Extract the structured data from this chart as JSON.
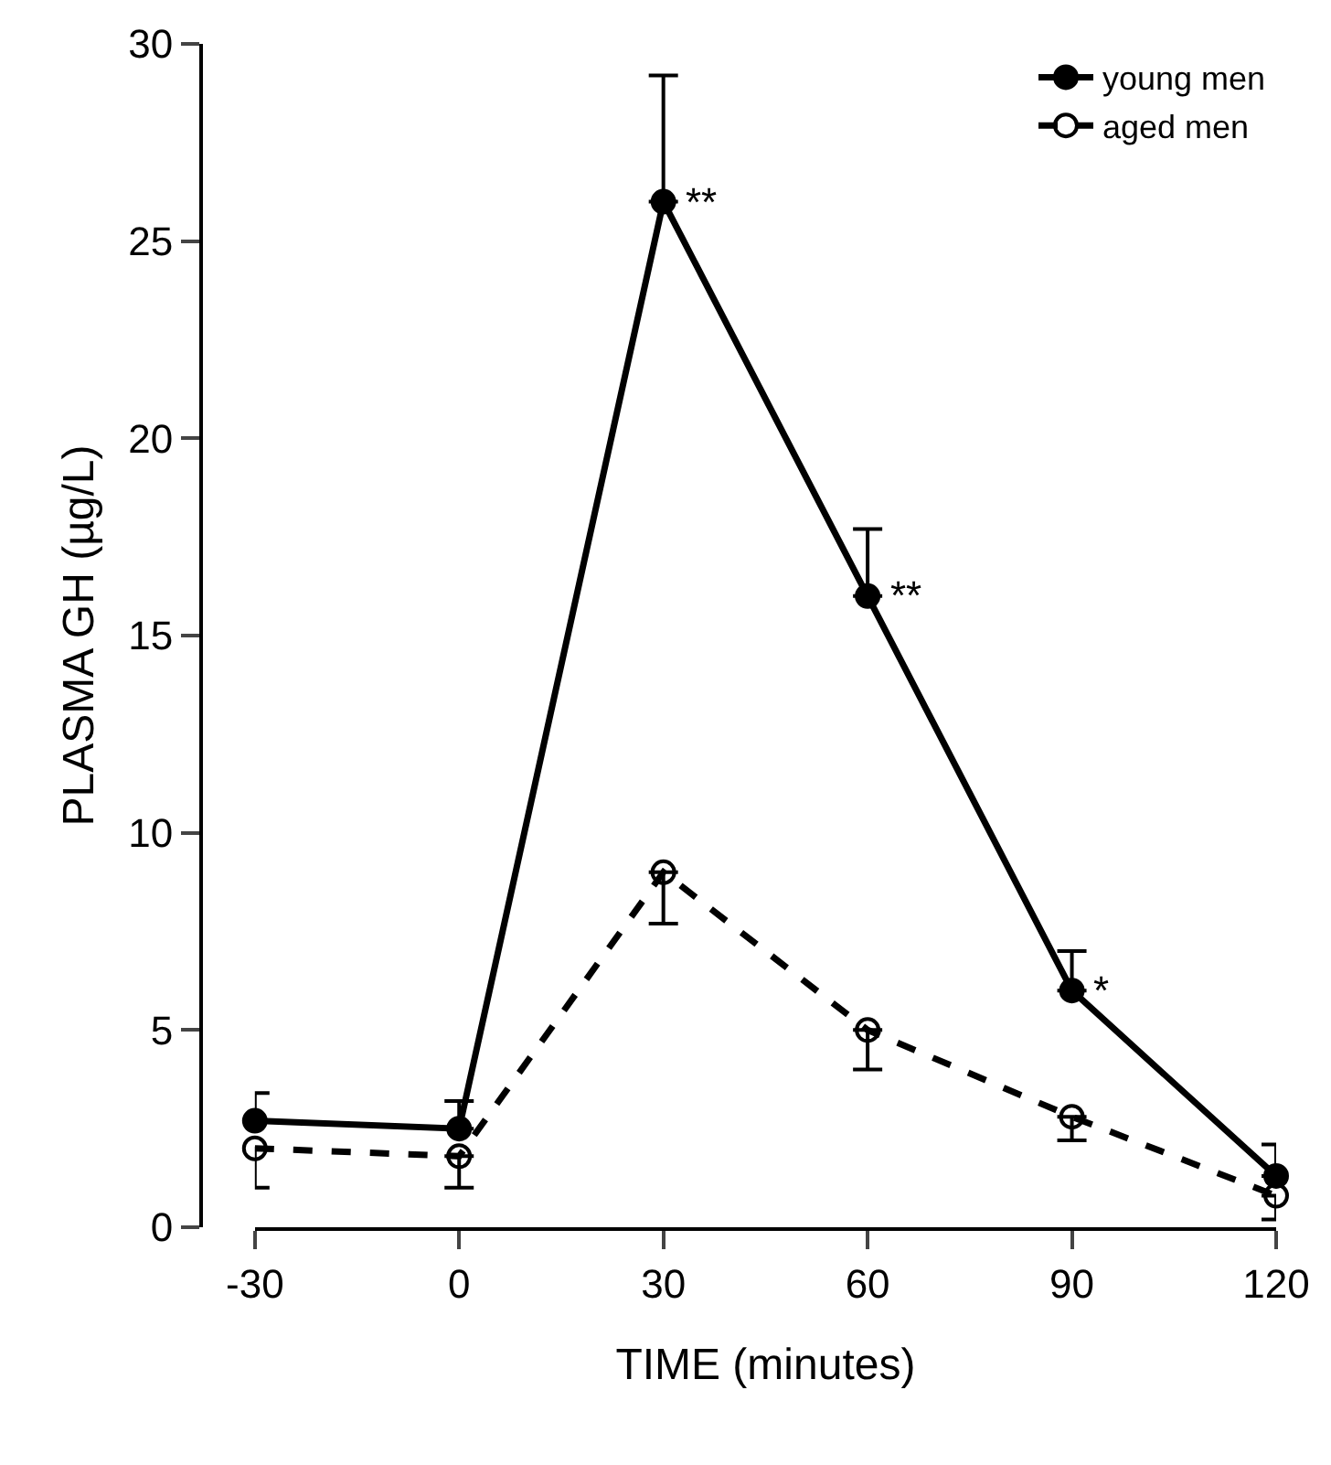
{
  "chart_data": {
    "type": "line",
    "xlabel": "TIME (minutes)",
    "ylabel": "PLASMA GH (µg/L)",
    "x": [
      -30,
      0,
      30,
      60,
      90,
      120
    ],
    "xlim": [
      -30,
      120
    ],
    "xticks": [
      -30,
      0,
      30,
      60,
      90,
      120
    ],
    "ylim": [
      0,
      30
    ],
    "yticks": [
      0,
      5,
      10,
      15,
      20,
      25,
      30
    ],
    "grid": false,
    "legend": "top right",
    "marker": "circle",
    "series": [
      {
        "name": "young men",
        "color": "#000000",
        "line_style": "solid",
        "values": [
          2.7,
          2.5,
          26,
          16,
          6,
          1.3
        ],
        "errors": [
          [
            2.7,
            3.4
          ],
          [
            2.5,
            3.2
          ],
          [
            26,
            29.2
          ],
          [
            16,
            17.7
          ],
          [
            6,
            7
          ],
          [
            1.3,
            2.1
          ]
        ]
      },
      {
        "name": "aged men",
        "color": "#000000",
        "line_style": "dashed",
        "values": [
          2,
          1.8,
          9,
          5,
          2.8,
          0.8
        ],
        "errors": [
          [
            1,
            2
          ],
          [
            1,
            1.8
          ],
          [
            7.7,
            9
          ],
          [
            4,
            5
          ],
          [
            2.2,
            2.8
          ],
          [
            0.2,
            0.8
          ]
        ]
      }
    ],
    "annotations": [
      {
        "text": "**",
        "x": 30,
        "y": 26
      },
      {
        "text": "**",
        "x": 60,
        "y": 16
      },
      {
        "text": "*",
        "x": 90,
        "y": 6
      }
    ]
  }
}
